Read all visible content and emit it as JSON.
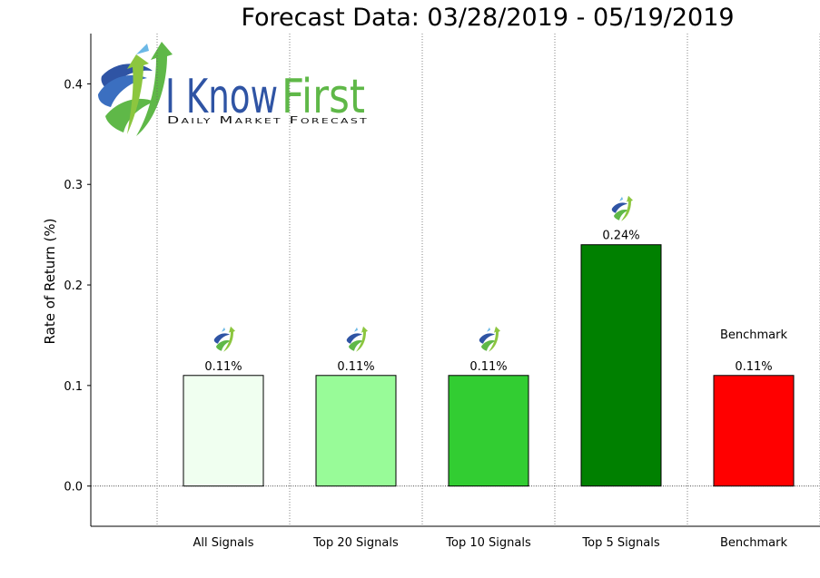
{
  "chart_data": {
    "type": "bar",
    "title": "Forecast Data: 03/28/2019 - 05/19/2019",
    "xlabel": "",
    "ylabel": "Rate of Return (%)",
    "ylim": [
      -0.04,
      0.45
    ],
    "yticks": [
      0.0,
      0.1,
      0.2,
      0.3,
      0.4
    ],
    "ytick_labels": [
      "0.0",
      "0.1",
      "0.2",
      "0.3",
      "0.4"
    ],
    "categories": [
      "All Signals",
      "Top 20 Signals",
      "Top 10 Signals",
      "Top 5 Signals",
      "Benchmark"
    ],
    "values": [
      0.11,
      0.11,
      0.11,
      0.24,
      0.11
    ],
    "value_labels": [
      "0.11%",
      "0.11%",
      "0.11%",
      "0.24%",
      "0.11%"
    ],
    "colors": [
      "#f0fff0",
      "#98fb98",
      "#32cd32",
      "#008000",
      "#ff0000"
    ],
    "benchmark_annotation": "Benchmark",
    "grid": "vertical dotted separators between categories",
    "legend": "none"
  },
  "logo": {
    "name_part1": "I Know",
    "name_part2": "First",
    "tagline": "Daily Market Forecast",
    "blue": "#2f54a4",
    "green": "#5fb848"
  }
}
